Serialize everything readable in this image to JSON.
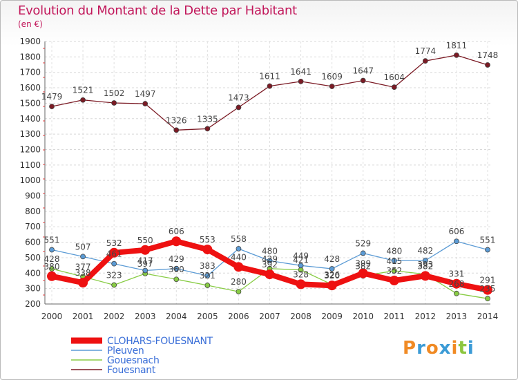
{
  "chart_data": {
    "type": "line",
    "title": "Evolution du Montant de la Dette par Habitant",
    "subtitle": "(en €)",
    "x": [
      "2000",
      "2001",
      "2002",
      "2003",
      "2004",
      "2005",
      "2006",
      "2007",
      "2008",
      "2009",
      "2010",
      "2011",
      "2012",
      "2013",
      "2014"
    ],
    "yticks": [
      200,
      300,
      400,
      500,
      600,
      700,
      800,
      900,
      1000,
      1100,
      1200,
      1300,
      1400,
      1500,
      1600,
      1700,
      1800,
      1900
    ],
    "ylim": [
      200,
      1900
    ],
    "grid": true,
    "legend_position": "bottom-left",
    "series": [
      {
        "name": "CLOHARS-FOUESNANT",
        "color": "#ee1111",
        "values": [
          380,
          338,
          532,
          550,
          606,
          553,
          440,
          392,
          328,
          320,
          399,
          352,
          382,
          331,
          291
        ]
      },
      {
        "name": "Pleuven",
        "color": "#5b9bd5",
        "values": [
          551,
          507,
          461,
          417,
          429,
          383,
          558,
          480,
          449,
          428,
          529,
          480,
          482,
          606,
          551
        ]
      },
      {
        "name": "Gouesnach",
        "color": "#88cc44",
        "values": [
          428,
          377,
          323,
          397,
          360,
          321,
          280,
          429,
          421,
          326,
          382,
          415,
          393,
          268,
          235
        ]
      },
      {
        "name": "Fouesnant",
        "color": "#7b1a24",
        "values": [
          1479,
          1521,
          1502,
          1497,
          1326,
          1335,
          1473,
          1611,
          1641,
          1609,
          1647,
          1604,
          1774,
          1811,
          1748
        ]
      }
    ]
  },
  "logo": {
    "letters": [
      "P",
      "r",
      "o",
      "x",
      "i",
      "t",
      "i"
    ],
    "colors": [
      "#f08a24",
      "#3b9bd6",
      "#f08a24",
      "#3b9bd6",
      "#f08a24",
      "#8dc63f",
      "#3b9bd6"
    ]
  }
}
